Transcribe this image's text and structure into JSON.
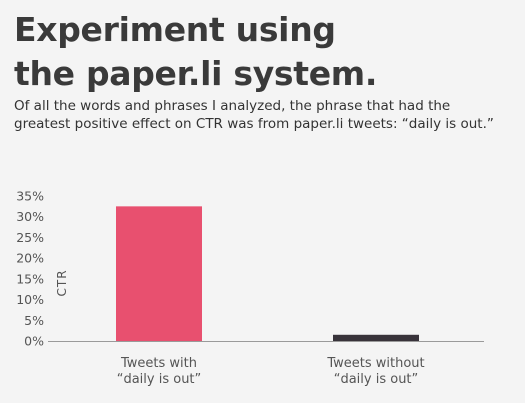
{
  "header": {
    "title_line1": "Experiment using",
    "title_line2": "the paper.li system.",
    "intro": "Of all the words and phrases I analyzed, the phrase that had the greatest positive effect on CTR was from paper.li tweets: “daily is out.”"
  },
  "chart_data": {
    "type": "bar",
    "categories": [
      [
        "Tweets with",
        "“daily is out”"
      ],
      [
        "Tweets without",
        "“daily is out”"
      ]
    ],
    "values": [
      32.5,
      1.5
    ],
    "colors": [
      "#e8506f",
      "#38333a"
    ],
    "ylabel": "CTR",
    "ylim": [
      0,
      35
    ],
    "yticks": [
      0,
      5,
      10,
      15,
      20,
      25,
      30,
      35
    ],
    "tick_suffix": "%",
    "grid": false
  }
}
